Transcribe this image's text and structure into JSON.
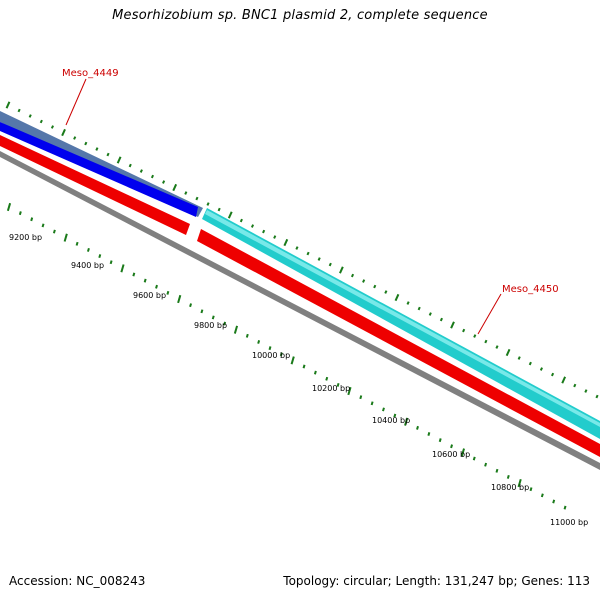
{
  "title": "Mesorhizobium sp. BNC1 plasmid 2, complete sequence",
  "footer": {
    "accession": "Accession: NC_008243",
    "summary": "Topology: circular; Length: 131,247 bp; Genes: 113"
  },
  "colors": {
    "gene_label": "#cc0000",
    "tick": "#1a7a1a",
    "track_blue": "#0000ee",
    "track_steel": "#5577aa",
    "track_red": "#ee0000",
    "track_cyan": "#22cccc",
    "track_gray": "#808080"
  },
  "genes": [
    {
      "name": "Meso_4449",
      "color": "blue"
    },
    {
      "name": "Meso_4450",
      "color": "cyan"
    }
  ],
  "position_labels": [
    "9200 bp",
    "9400 bp",
    "9600 bp",
    "9800 bp",
    "10000 bp",
    "10200 bp",
    "10400 bp",
    "10600 bp",
    "10800 bp",
    "11000 bp"
  ]
}
